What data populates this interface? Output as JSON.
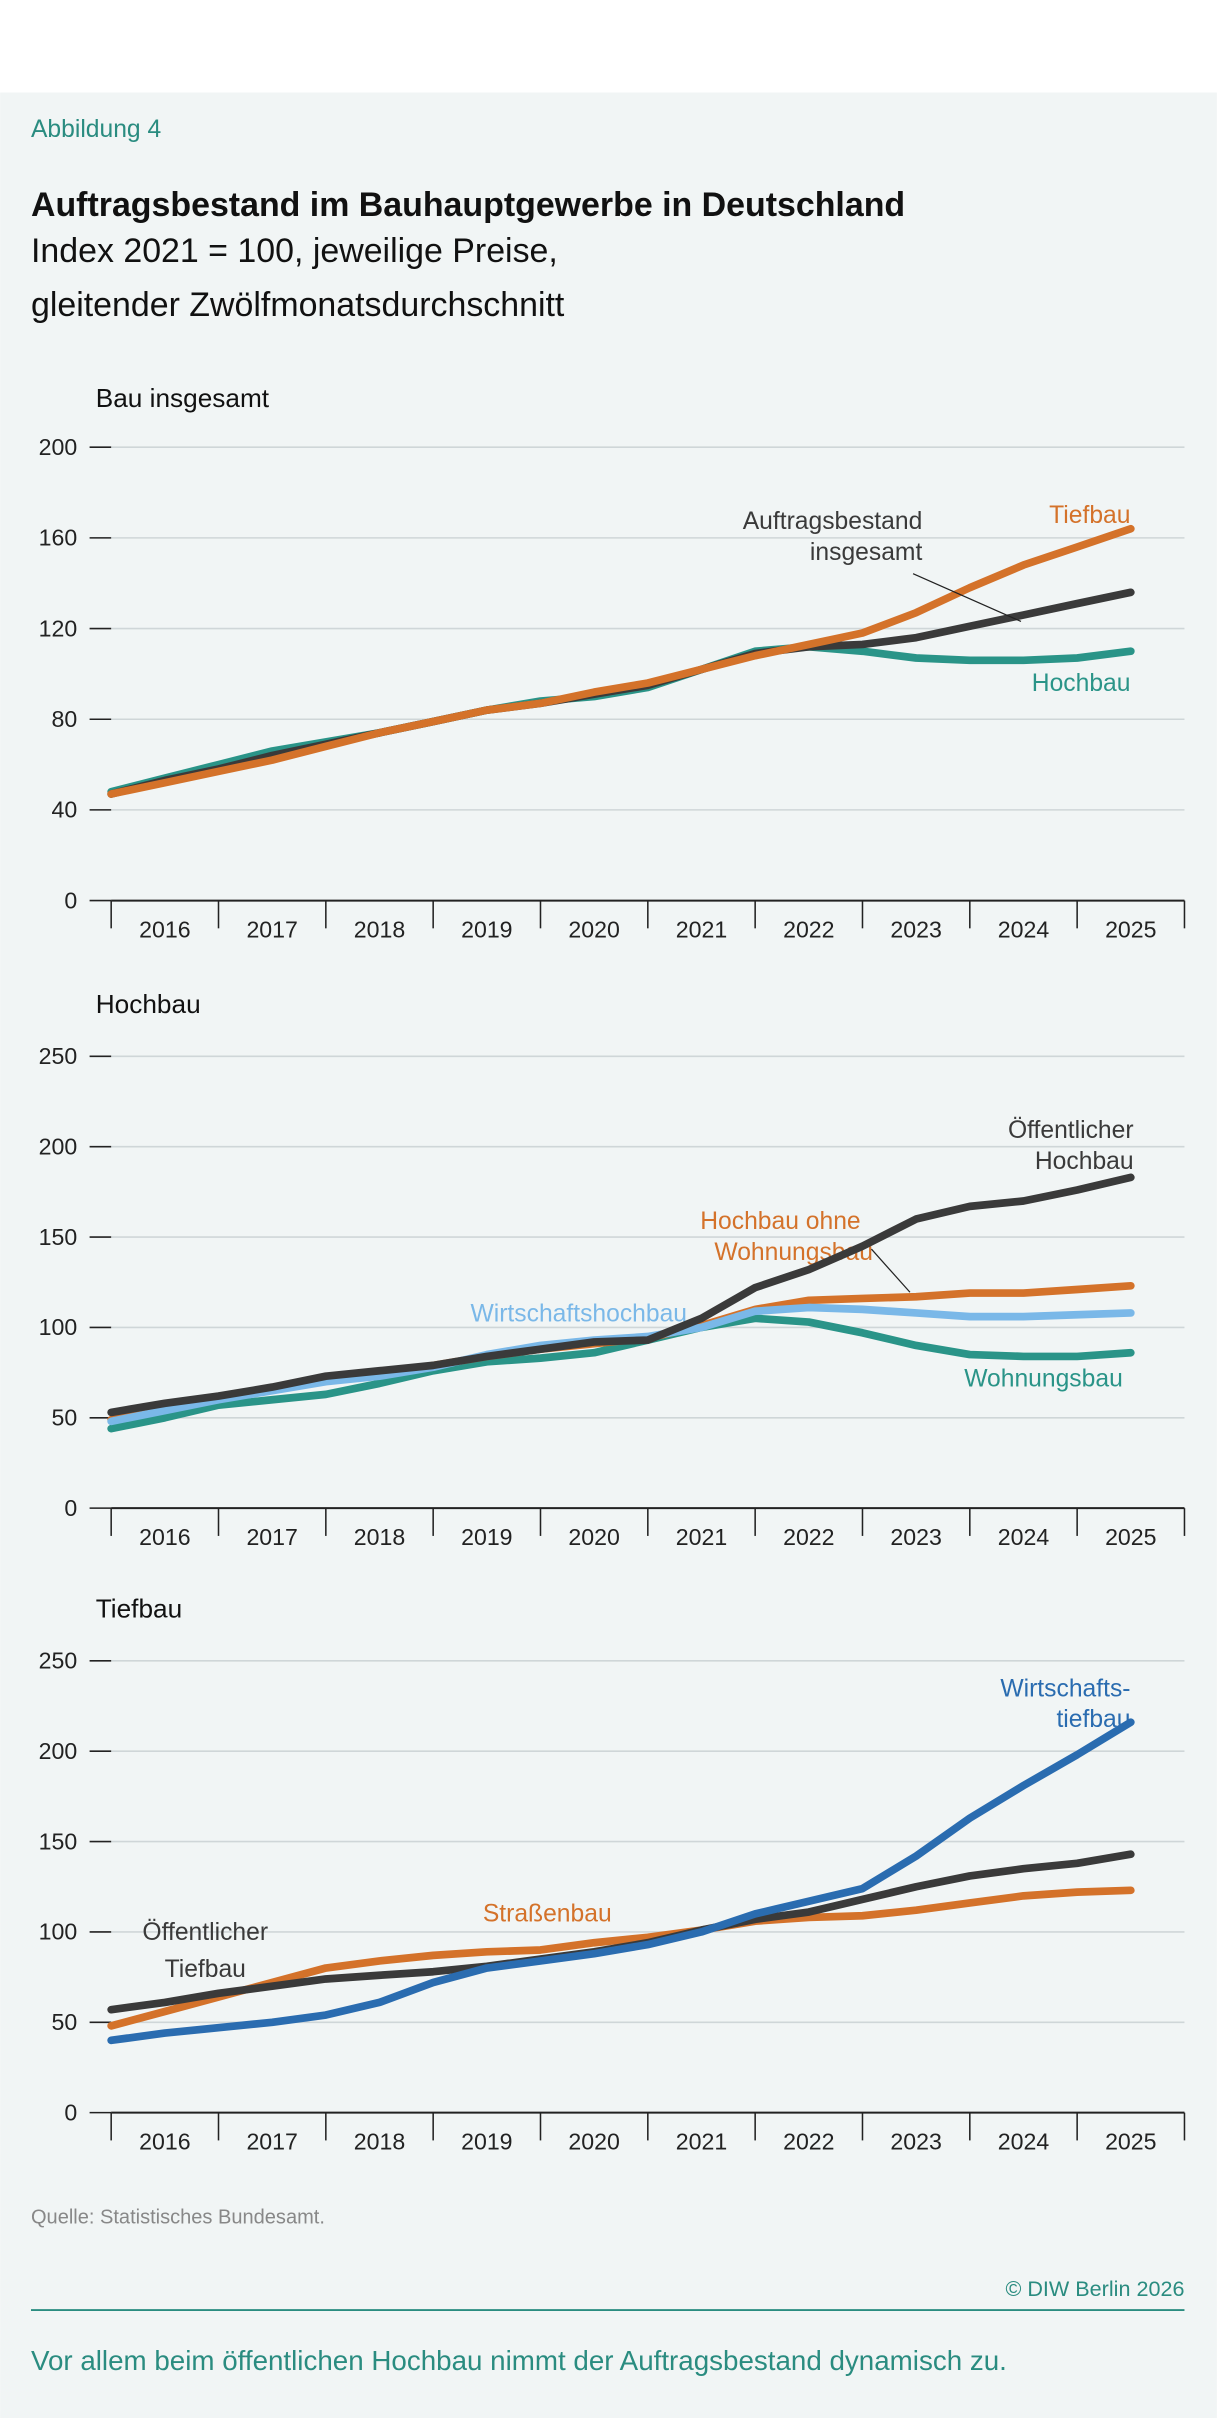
{
  "figure_label": "Abbildung 4",
  "title": "Auftragsbestand im Bauhauptgewerbe in Deutschland",
  "subtitle_lines": [
    "Index 2021 = 100, jeweilige Preise,",
    "gleitender Zwölfmonatsdurchschnitt"
  ],
  "source": "Quelle: Statistisches Bundesamt.",
  "copyright": "© DIW Berlin 2026",
  "caption": "Vor allem beim öffentlichen Hochbau nimmt der Auftragsbestand dynamisch zu.",
  "colors": {
    "background": "#f1f5f5",
    "accent": "#2a8c80",
    "orange": "#d4722a",
    "teal": "#2a9488",
    "dark": "#3a3a3a",
    "light_blue": "#7ab8e8",
    "blue": "#2a6cb0"
  },
  "chart_data": [
    {
      "type": "line",
      "title": "Bau insgesamt",
      "ylim": [
        0,
        200
      ],
      "yticks": [
        0,
        40,
        80,
        120,
        160,
        200
      ],
      "xtick_labels": [
        "2016",
        "2017",
        "2018",
        "2019",
        "2020",
        "2021",
        "2022",
        "2023",
        "2024",
        "2025"
      ],
      "grid": true,
      "x": [
        2016.0,
        2016.5,
        2017.0,
        2017.5,
        2018.0,
        2018.5,
        2019.0,
        2019.5,
        2020.0,
        2020.5,
        2021.0,
        2021.5,
        2022.0,
        2022.5,
        2023.0,
        2023.5,
        2024.0,
        2024.5,
        2025.0,
        2025.5
      ],
      "series": [
        {
          "name": "Hochbau",
          "label_lines": [
            "Hochbau"
          ],
          "color": "#2a9488",
          "values": [
            48,
            54,
            60,
            66,
            70,
            74,
            79,
            84,
            88,
            90,
            94,
            102,
            110,
            112,
            110,
            107,
            106,
            106,
            107,
            110
          ]
        },
        {
          "name": "Auftragsbestand insgesamt",
          "label_lines": [
            "Auftragsbestand",
            "insgesamt"
          ],
          "color": "#3a3a3a",
          "values": [
            47,
            53,
            58,
            64,
            69,
            74,
            79,
            84,
            87,
            91,
            95,
            102,
            109,
            112,
            113,
            116,
            121,
            126,
            131,
            136
          ]
        },
        {
          "name": "Tiefbau",
          "label_lines": [
            "Tiefbau"
          ],
          "color": "#d4722a",
          "values": [
            47,
            52,
            57,
            62,
            68,
            74,
            79,
            84,
            87,
            92,
            96,
            102,
            108,
            113,
            118,
            127,
            138,
            148,
            156,
            164
          ]
        }
      ]
    },
    {
      "type": "line",
      "title": "Hochbau",
      "ylim": [
        0,
        250
      ],
      "yticks": [
        0,
        50,
        100,
        150,
        200,
        250
      ],
      "xtick_labels": [
        "2016",
        "2017",
        "2018",
        "2019",
        "2020",
        "2021",
        "2022",
        "2023",
        "2024",
        "2025"
      ],
      "grid": true,
      "x": [
        2016.0,
        2016.5,
        2017.0,
        2017.5,
        2018.0,
        2018.5,
        2019.0,
        2019.5,
        2020.0,
        2020.5,
        2021.0,
        2021.5,
        2022.0,
        2022.5,
        2023.0,
        2023.5,
        2024.0,
        2024.5,
        2025.0,
        2025.5
      ],
      "series": [
        {
          "name": "Wohnungsbau",
          "label_lines": [
            "Wohnungsbau"
          ],
          "color": "#2a9488",
          "values": [
            44,
            50,
            57,
            60,
            63,
            69,
            76,
            81,
            83,
            86,
            93,
            100,
            105,
            103,
            97,
            90,
            85,
            84,
            84,
            86
          ]
        },
        {
          "name": "Hochbau ohne Wohnungsbau",
          "label_lines": [
            "Hochbau ohne",
            "Wohnungsbau"
          ],
          "color": "#d4722a",
          "values": [
            49,
            55,
            61,
            66,
            71,
            74,
            79,
            84,
            88,
            91,
            94,
            101,
            110,
            115,
            116,
            117,
            119,
            119,
            121,
            123
          ]
        },
        {
          "name": "Wirtschaftshochbau",
          "label_lines": [
            "Wirtschaftshochbau"
          ],
          "color": "#7ab8e8",
          "values": [
            48,
            54,
            60,
            65,
            70,
            73,
            78,
            85,
            90,
            93,
            95,
            100,
            109,
            111,
            110,
            108,
            106,
            106,
            107,
            108
          ]
        },
        {
          "name": "Öffentlicher Hochbau",
          "label_lines": [
            "Öffentlicher",
            "Hochbau"
          ],
          "color": "#3a3a3a",
          "values": [
            53,
            58,
            62,
            67,
            73,
            76,
            79,
            84,
            88,
            92,
            93,
            105,
            122,
            132,
            145,
            160,
            167,
            170,
            176,
            183
          ]
        }
      ]
    },
    {
      "type": "line",
      "title": "Tiefbau",
      "ylim": [
        0,
        250
      ],
      "yticks": [
        0,
        50,
        100,
        150,
        200,
        250
      ],
      "xtick_labels": [
        "2016",
        "2017",
        "2018",
        "2019",
        "2020",
        "2021",
        "2022",
        "2023",
        "2024",
        "2025"
      ],
      "grid": true,
      "x": [
        2016.0,
        2016.5,
        2017.0,
        2017.5,
        2018.0,
        2018.5,
        2019.0,
        2019.5,
        2020.0,
        2020.5,
        2021.0,
        2021.5,
        2022.0,
        2022.5,
        2023.0,
        2023.5,
        2024.0,
        2024.5,
        2025.0,
        2025.5
      ],
      "series": [
        {
          "name": "Straßenbau",
          "label_lines": [
            "Straßenbau"
          ],
          "color": "#d4722a",
          "values": [
            48,
            56,
            64,
            72,
            80,
            84,
            87,
            89,
            90,
            94,
            97,
            101,
            106,
            108,
            109,
            112,
            116,
            120,
            122,
            123
          ]
        },
        {
          "name": "Öffentlicher Tiefbau",
          "label_lines": [
            "Öffentlicher",
            "Tiefbau"
          ],
          "color": "#3a3a3a",
          "values": [
            57,
            61,
            66,
            70,
            74,
            76,
            78,
            81,
            85,
            89,
            94,
            101,
            107,
            111,
            118,
            125,
            131,
            135,
            138,
            143
          ]
        },
        {
          "name": "Wirtschaftstiefbau",
          "label_lines": [
            "Wirtschafts-",
            "tiefbau"
          ],
          "color": "#2a6cb0",
          "values": [
            40,
            44,
            47,
            50,
            54,
            61,
            72,
            80,
            84,
            88,
            93,
            100,
            110,
            117,
            124,
            142,
            163,
            181,
            198,
            216
          ]
        }
      ]
    }
  ]
}
